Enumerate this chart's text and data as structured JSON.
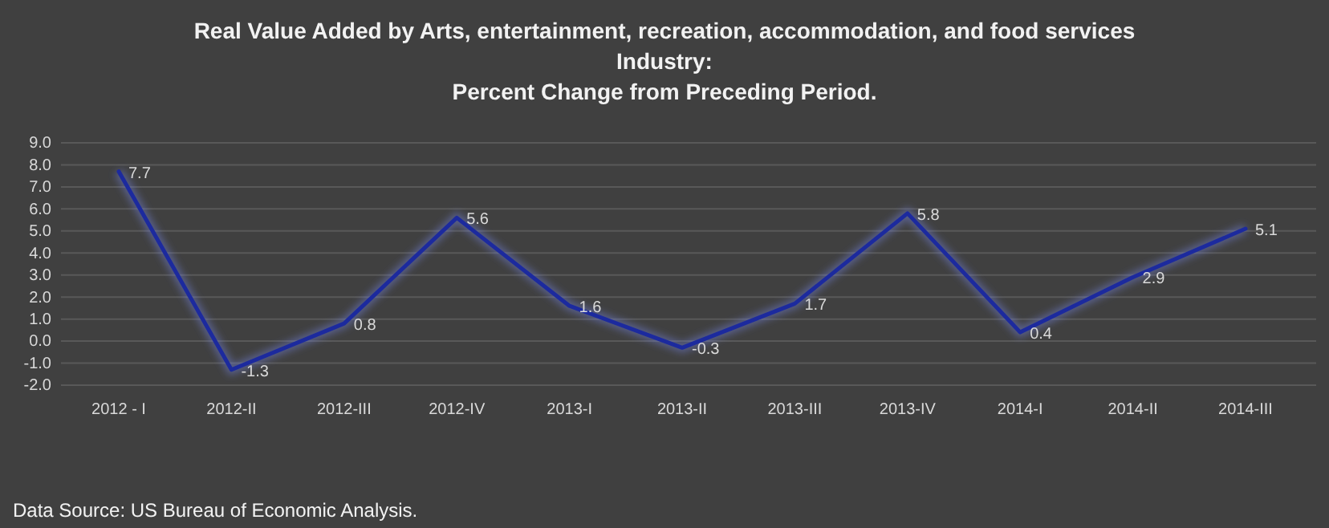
{
  "chart_data": {
    "type": "line",
    "title": "Real Value Added by Arts, entertainment, recreation, accommodation, and food services\nIndustry:\nPercent Change from Preceding Period.",
    "categories": [
      "2012 - I",
      "2012-II",
      "2012-III",
      "2012-IV",
      "2013-I",
      "2013-II",
      "2013-III",
      "2013-IV",
      "2014-I",
      "2014-II",
      "2014-III"
    ],
    "series": [
      {
        "color": "#1c2a9e",
        "values": [
          7.7,
          -1.3,
          0.8,
          5.6,
          1.6,
          -0.3,
          1.7,
          5.8,
          0.4,
          2.9,
          5.1
        ]
      }
    ],
    "ylim": [
      -2,
      9
    ],
    "yticks": [
      {
        "value": -2,
        "label": "-2.0"
      },
      {
        "value": -1,
        "label": "-1.0"
      },
      {
        "value": 0,
        "label": "0.0"
      },
      {
        "value": 1,
        "label": "1.0"
      },
      {
        "value": 2,
        "label": "2.0"
      },
      {
        "value": 3,
        "label": "3.0"
      },
      {
        "value": 4,
        "label": "4.0"
      },
      {
        "value": 5,
        "label": "5.0"
      },
      {
        "value": 6,
        "label": "6.0"
      },
      {
        "value": 7,
        "label": "7.0"
      },
      {
        "value": 8,
        "label": "8.0"
      },
      {
        "value": 9,
        "label": "9.0"
      }
    ],
    "grid": "y",
    "data_labels": true,
    "marker": "none",
    "line_style": "solid",
    "annotations": [
      "Data Source: US Bureau of Economic Analysis."
    ]
  }
}
